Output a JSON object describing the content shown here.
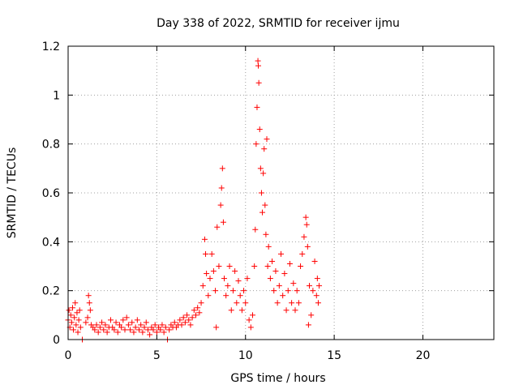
{
  "chart_data": {
    "type": "scatter",
    "title": "Day 338 of 2022, SRMTID for receiver ijmu",
    "xlabel": "GPS time / hours",
    "ylabel": "SRMTID / TECUs",
    "xlim": [
      0,
      24
    ],
    "ylim": [
      0,
      1.2
    ],
    "xticks": [
      0,
      5,
      10,
      15,
      20
    ],
    "xtick_labels": [
      "0",
      "5",
      "10",
      "15",
      "20"
    ],
    "yticks": [
      0,
      0.2,
      0.4,
      0.6,
      0.8,
      1.0,
      1.2
    ],
    "ytick_labels": [
      "0",
      "0.2",
      "0.4",
      "0.6",
      "0.8",
      "1",
      "1.2"
    ],
    "grid": true,
    "marker": "plus",
    "color": "#ff0000",
    "series": [
      {
        "name": "SRMTID",
        "points": [
          [
            0.0,
            0.08
          ],
          [
            0.05,
            0.12
          ],
          [
            0.1,
            0.05
          ],
          [
            0.15,
            0.1
          ],
          [
            0.2,
            0.07
          ],
          [
            0.25,
            0.13
          ],
          [
            0.3,
            0.04
          ],
          [
            0.35,
            0.09
          ],
          [
            0.4,
            0.15
          ],
          [
            0.45,
            0.06
          ],
          [
            0.5,
            0.11
          ],
          [
            0.55,
            0.03
          ],
          [
            0.6,
            0.08
          ],
          [
            0.65,
            0.12
          ],
          [
            0.7,
            0.05
          ],
          [
            0.8,
            0.0
          ],
          [
            1.0,
            0.07
          ],
          [
            1.1,
            0.09
          ],
          [
            1.15,
            0.18
          ],
          [
            1.2,
            0.15
          ],
          [
            1.25,
            0.12
          ],
          [
            1.3,
            0.06
          ],
          [
            1.4,
            0.05
          ],
          [
            1.5,
            0.04
          ],
          [
            1.6,
            0.06
          ],
          [
            1.7,
            0.03
          ],
          [
            1.8,
            0.05
          ],
          [
            1.9,
            0.07
          ],
          [
            2.0,
            0.04
          ],
          [
            2.1,
            0.06
          ],
          [
            2.2,
            0.03
          ],
          [
            2.3,
            0.05
          ],
          [
            2.4,
            0.08
          ],
          [
            2.5,
            0.05
          ],
          [
            2.6,
            0.04
          ],
          [
            2.7,
            0.07
          ],
          [
            2.8,
            0.03
          ],
          [
            2.9,
            0.06
          ],
          [
            3.0,
            0.05
          ],
          [
            3.1,
            0.08
          ],
          [
            3.2,
            0.04
          ],
          [
            3.3,
            0.09
          ],
          [
            3.4,
            0.06
          ],
          [
            3.5,
            0.04
          ],
          [
            3.6,
            0.07
          ],
          [
            3.7,
            0.03
          ],
          [
            3.8,
            0.05
          ],
          [
            3.9,
            0.08
          ],
          [
            4.0,
            0.04
          ],
          [
            4.1,
            0.06
          ],
          [
            4.2,
            0.03
          ],
          [
            4.3,
            0.05
          ],
          [
            4.4,
            0.07
          ],
          [
            4.5,
            0.04
          ],
          [
            4.6,
            0.02
          ],
          [
            4.7,
            0.05
          ],
          [
            4.8,
            0.04
          ],
          [
            4.9,
            0.06
          ],
          [
            5.0,
            0.03
          ],
          [
            5.1,
            0.05
          ],
          [
            5.2,
            0.04
          ],
          [
            5.3,
            0.06
          ],
          [
            5.4,
            0.03
          ],
          [
            5.5,
            0.05
          ],
          [
            5.6,
            0.0
          ],
          [
            5.7,
            0.04
          ],
          [
            5.8,
            0.06
          ],
          [
            5.9,
            0.05
          ],
          [
            6.0,
            0.07
          ],
          [
            6.1,
            0.05
          ],
          [
            6.2,
            0.06
          ],
          [
            6.3,
            0.08
          ],
          [
            6.4,
            0.06
          ],
          [
            6.5,
            0.09
          ],
          [
            6.6,
            0.07
          ],
          [
            6.7,
            0.1
          ],
          [
            6.8,
            0.08
          ],
          [
            6.9,
            0.06
          ],
          [
            7.0,
            0.09
          ],
          [
            7.1,
            0.12
          ],
          [
            7.2,
            0.1
          ],
          [
            7.3,
            0.13
          ],
          [
            7.4,
            0.11
          ],
          [
            7.5,
            0.15
          ],
          [
            7.6,
            0.22
          ],
          [
            7.7,
            0.41
          ],
          [
            7.75,
            0.35
          ],
          [
            7.8,
            0.27
          ],
          [
            7.9,
            0.18
          ],
          [
            8.0,
            0.25
          ],
          [
            8.1,
            0.35
          ],
          [
            8.2,
            0.28
          ],
          [
            8.3,
            0.2
          ],
          [
            8.35,
            0.05
          ],
          [
            8.4,
            0.46
          ],
          [
            8.5,
            0.3
          ],
          [
            8.6,
            0.55
          ],
          [
            8.65,
            0.62
          ],
          [
            8.7,
            0.7
          ],
          [
            8.75,
            0.48
          ],
          [
            8.8,
            0.25
          ],
          [
            8.9,
            0.18
          ],
          [
            9.0,
            0.22
          ],
          [
            9.1,
            0.3
          ],
          [
            9.2,
            0.12
          ],
          [
            9.3,
            0.2
          ],
          [
            9.4,
            0.28
          ],
          [
            9.5,
            0.15
          ],
          [
            9.6,
            0.24
          ],
          [
            9.7,
            0.18
          ],
          [
            9.8,
            0.12
          ],
          [
            9.9,
            0.2
          ],
          [
            10.0,
            0.15
          ],
          [
            10.1,
            0.25
          ],
          [
            10.2,
            0.08
          ],
          [
            10.3,
            0.05
          ],
          [
            10.4,
            0.1
          ],
          [
            10.5,
            0.3
          ],
          [
            10.55,
            0.45
          ],
          [
            10.6,
            0.8
          ],
          [
            10.65,
            0.95
          ],
          [
            10.7,
            1.14
          ],
          [
            10.72,
            1.12
          ],
          [
            10.75,
            1.05
          ],
          [
            10.8,
            0.86
          ],
          [
            10.85,
            0.7
          ],
          [
            10.9,
            0.6
          ],
          [
            10.95,
            0.52
          ],
          [
            11.0,
            0.68
          ],
          [
            11.05,
            0.78
          ],
          [
            11.1,
            0.55
          ],
          [
            11.15,
            0.43
          ],
          [
            11.2,
            0.82
          ],
          [
            11.25,
            0.3
          ],
          [
            11.3,
            0.38
          ],
          [
            11.4,
            0.25
          ],
          [
            11.5,
            0.32
          ],
          [
            11.6,
            0.2
          ],
          [
            11.7,
            0.28
          ],
          [
            11.8,
            0.15
          ],
          [
            11.9,
            0.22
          ],
          [
            12.0,
            0.35
          ],
          [
            12.1,
            0.18
          ],
          [
            12.2,
            0.27
          ],
          [
            12.3,
            0.12
          ],
          [
            12.4,
            0.2
          ],
          [
            12.5,
            0.31
          ],
          [
            12.6,
            0.15
          ],
          [
            12.7,
            0.23
          ],
          [
            12.8,
            0.12
          ],
          [
            12.9,
            0.2
          ],
          [
            13.0,
            0.15
          ],
          [
            13.1,
            0.3
          ],
          [
            13.2,
            0.35
          ],
          [
            13.3,
            0.42
          ],
          [
            13.4,
            0.5
          ],
          [
            13.45,
            0.47
          ],
          [
            13.5,
            0.38
          ],
          [
            13.55,
            0.06
          ],
          [
            13.6,
            0.22
          ],
          [
            13.7,
            0.1
          ],
          [
            13.8,
            0.2
          ],
          [
            13.9,
            0.32
          ],
          [
            14.0,
            0.18
          ],
          [
            14.05,
            0.25
          ],
          [
            14.1,
            0.15
          ],
          [
            14.15,
            0.22
          ]
        ]
      }
    ]
  }
}
